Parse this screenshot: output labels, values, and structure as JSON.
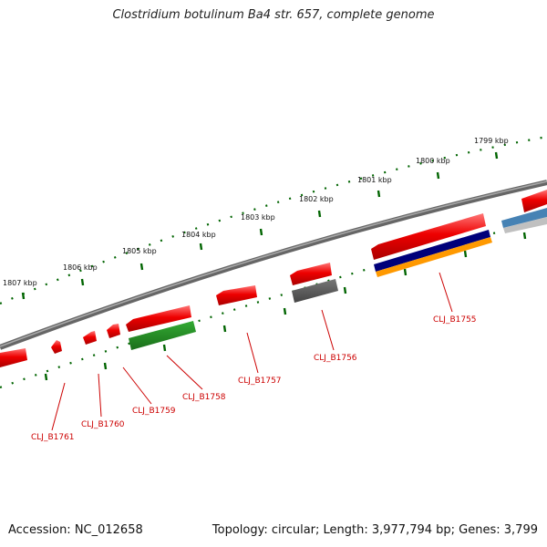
{
  "title": "Clostridium botulinum Ba4 str. 657, complete genome",
  "footer": {
    "accession": "Accession: NC_012658",
    "topology": "Topology: circular; Length: 3,977,794 bp; Genes: 3,799"
  },
  "colors": {
    "backbone": "#808080",
    "gene_red": "#ee0000",
    "gene_green": "#228b22",
    "gene_gray": "#555555",
    "gene_navy": "#00007a",
    "gene_orange": "#ff9900",
    "gene_steelblue": "#4682b4",
    "gene_silver": "#c0c0c0",
    "tick": "#006400",
    "label": "#cc0000"
  },
  "kbp_labels": [
    "1807 kbp",
    "1806 kbp",
    "1805 kbp",
    "1804 kbp",
    "1803 kbp",
    "1802 kbp",
    "1801 kbp",
    "1800 kbp",
    "1799 kbp"
  ],
  "gene_labels": [
    "CLJ_B1761",
    "CLJ_B1760",
    "CLJ_B1759",
    "CLJ_B1758",
    "CLJ_B1757",
    "CLJ_B1756",
    "CLJ_B1755"
  ]
}
